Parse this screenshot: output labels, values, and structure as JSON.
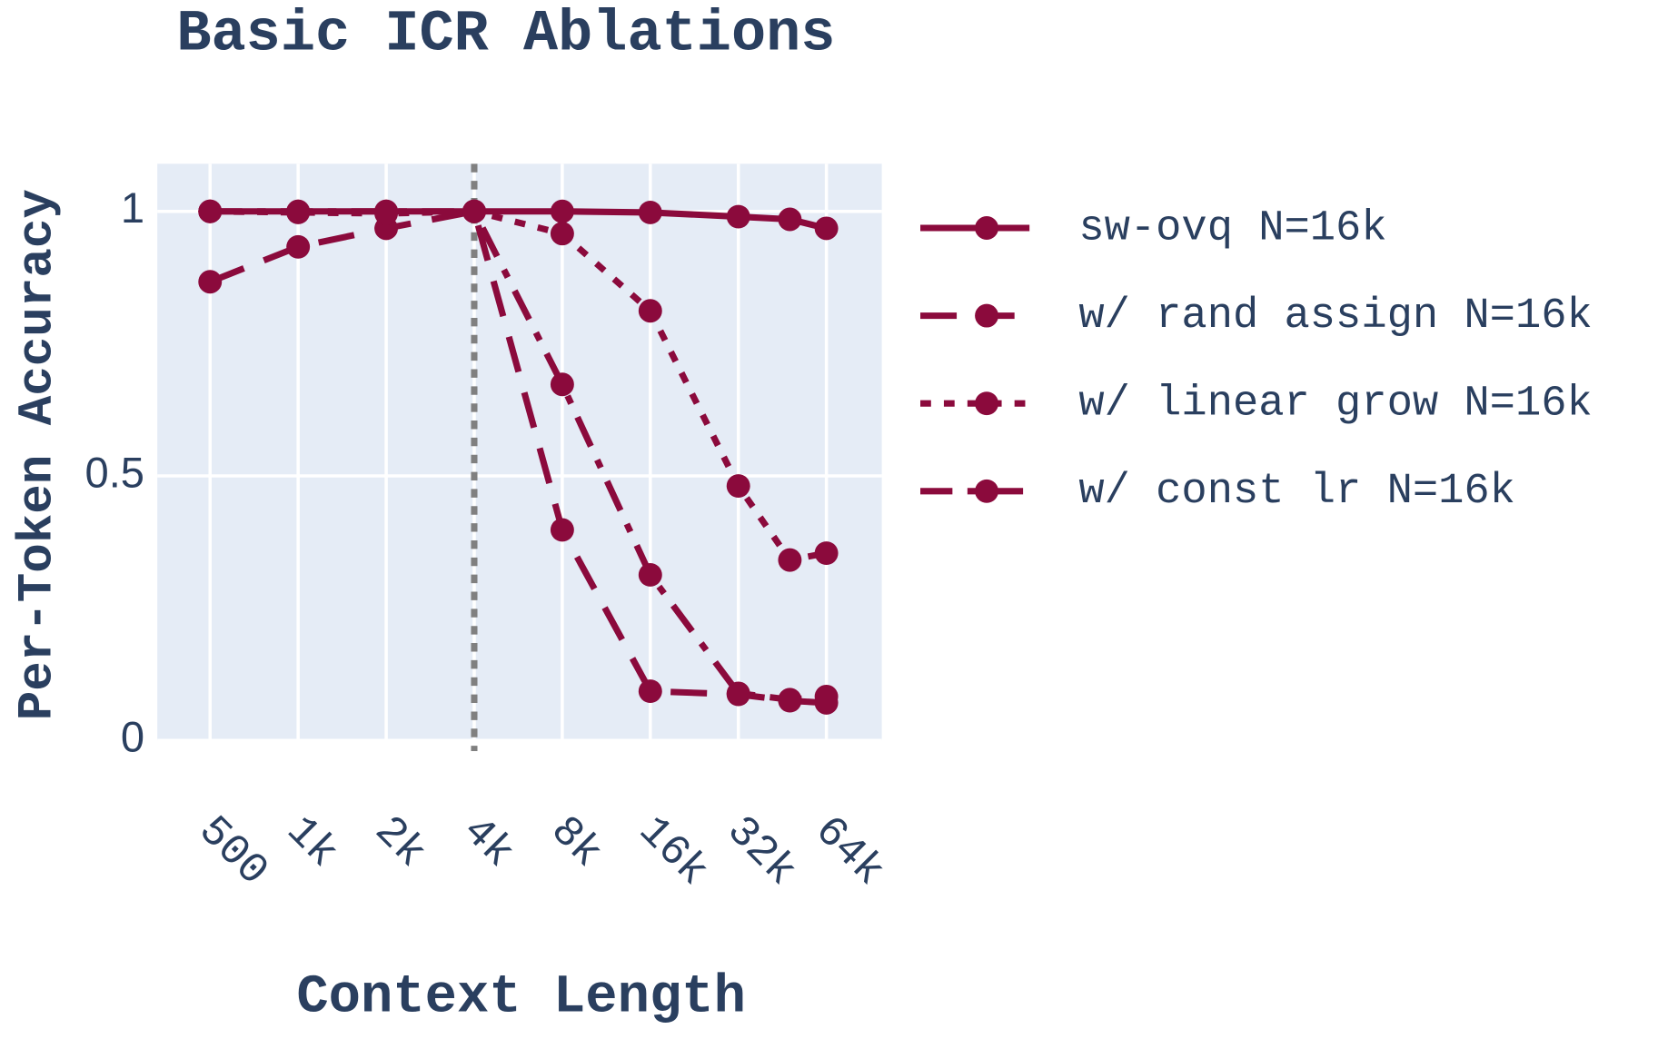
{
  "chart_data": {
    "type": "line",
    "title": "Basic ICR Ablations",
    "x_label": "Context Length",
    "y_label": "Per-Token Accuracy",
    "x": [
      500,
      1000,
      2000,
      4000,
      8000,
      16000,
      32000,
      48000,
      64000
    ],
    "xscale": "log",
    "xlim": [
      330,
      99000
    ],
    "xticks": [
      {
        "value": 500,
        "label": "500"
      },
      {
        "value": 1000,
        "label": "1k"
      },
      {
        "value": 2000,
        "label": "2k"
      },
      {
        "value": 4000,
        "label": "4k"
      },
      {
        "value": 8000,
        "label": "8k"
      },
      {
        "value": 16000,
        "label": "16k"
      },
      {
        "value": 32000,
        "label": "32k"
      },
      {
        "value": 64000,
        "label": "64k"
      }
    ],
    "ylim": [
      0,
      1.09
    ],
    "yticks": [
      0,
      0.5,
      1
    ],
    "grid": true,
    "vline": {
      "x": 4000,
      "color": "#808080"
    },
    "series": [
      {
        "name": "sw-ovq N=16k",
        "color": "#8b0a3c",
        "dash": "solid",
        "values": [
          1.0,
          1.0,
          1.0,
          1.0,
          1.0,
          0.998,
          0.99,
          0.985,
          0.968
        ]
      },
      {
        "name": "w/ rand assign N=16k",
        "color": "#8b0a3c",
        "dash": "dash",
        "values": [
          0.867,
          0.933,
          0.968,
          1.0,
          0.398,
          0.093,
          0.087,
          0.075,
          0.071
        ]
      },
      {
        "name": "w/ linear grow N=16k",
        "color": "#8b0a3c",
        "dash": "dot",
        "values": [
          1.0,
          0.998,
          0.996,
          1.0,
          0.958,
          0.812,
          0.481,
          0.341,
          0.354
        ]
      },
      {
        "name": "w/ const lr N=16k",
        "color": "#8b0a3c",
        "dash": "dashdot",
        "values": [
          1.0,
          1.0,
          1.0,
          1.0,
          0.673,
          0.313,
          0.089,
          0.077,
          0.083
        ]
      }
    ]
  }
}
